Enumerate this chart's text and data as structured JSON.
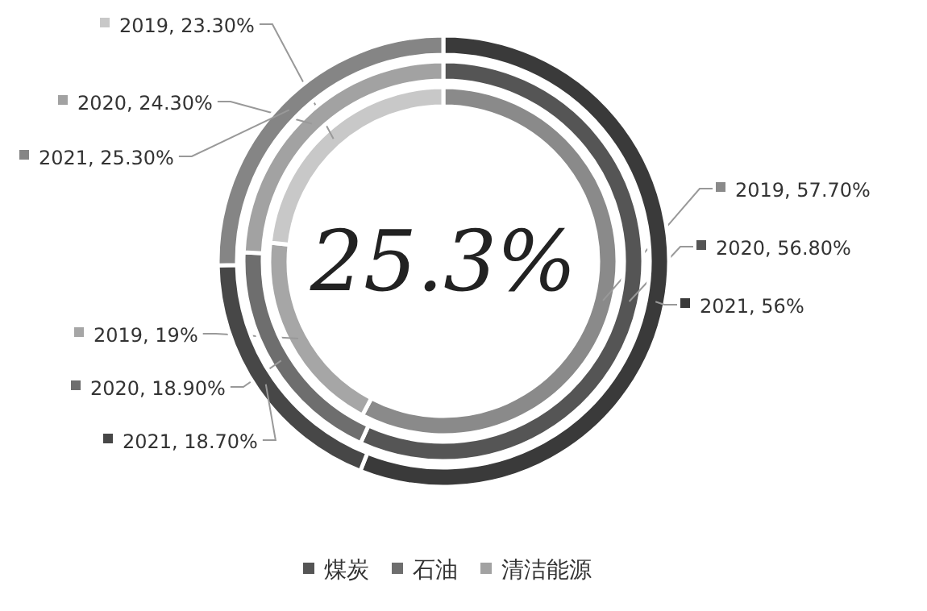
{
  "chart_data": {
    "type": "donut",
    "categories": [
      "煤炭",
      "石油",
      "清洁能源"
    ],
    "series": [
      {
        "values": [
          57.7,
          19,
          23.3
        ],
        "colors": [
          "#8a8a8a",
          "#a6a6a6",
          "#c8c8c8"
        ],
        "value_labels": [
          "2019, 57.70%",
          "2019, 19%",
          "2019, 23.30%"
        ]
      },
      {
        "values": [
          56.8,
          18.9,
          24.3
        ],
        "colors": [
          "#555555",
          "#6e6e6e",
          "#a2a2a2"
        ],
        "value_labels": [
          "2020, 56.80%",
          "2020, 18.90%",
          "2020, 24.30%"
        ]
      },
      {
        "values": [
          56,
          18.7,
          25.3
        ],
        "colors": [
          "#3a3a3a",
          "#474747",
          "#858585"
        ],
        "value_labels": [
          "2021, 56%",
          "2021, 18.70%",
          "2021, 25.30%"
        ]
      }
    ],
    "annotations": [
      "25.3%"
    ],
    "legend": "bottom"
  }
}
